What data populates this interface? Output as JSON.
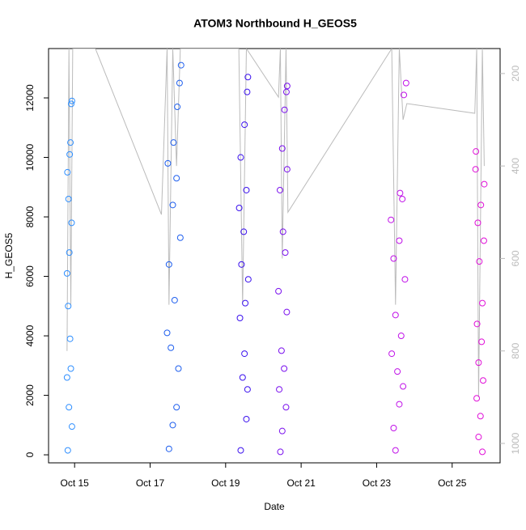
{
  "chart_data": {
    "type": "scatter",
    "title": "ATOM3 Northbound H_GEOS5",
    "x_label": "Date",
    "y_label": "H_GEOS5",
    "xlim": [
      14.31,
      26.27
    ],
    "xticks": [
      {
        "value": 15,
        "label": "Oct 15"
      },
      {
        "value": 17,
        "label": "Oct 17"
      },
      {
        "value": 19,
        "label": "Oct 19"
      },
      {
        "value": 21,
        "label": "Oct 21"
      },
      {
        "value": 23,
        "label": "Oct 23"
      },
      {
        "value": 25,
        "label": "Oct 25"
      }
    ],
    "ylim": [
      -270,
      13660
    ],
    "yticks": [
      0,
      2000,
      4000,
      6000,
      8000,
      10000,
      12000
    ],
    "y2lim": [
      1042,
      146
    ],
    "y2ticks": [
      200,
      400,
      600,
      800,
      1000
    ],
    "y2_color": "#bbbbbb",
    "series": [
      {
        "color": "#2f8fff",
        "x": [
          14.82,
          14.93,
          14.85,
          14.8,
          14.9,
          14.88,
          14.83,
          14.8,
          14.86,
          14.92,
          14.84,
          14.81,
          14.87,
          14.89,
          14.91,
          14.93
        ],
        "values": [
          150,
          950,
          1600,
          2600,
          2900,
          3900,
          5000,
          6100,
          6800,
          7800,
          8600,
          9500,
          10100,
          10500,
          11800,
          11900
        ]
      },
      {
        "color": "#1f5fee",
        "x": [
          17.5,
          17.6,
          17.7,
          17.75,
          17.55,
          17.45,
          17.65,
          17.5,
          17.8,
          17.6,
          17.7,
          17.47,
          17.62,
          17.72,
          17.78,
          17.82
        ],
        "values": [
          200,
          1000,
          1600,
          2900,
          3600,
          4100,
          5200,
          6400,
          7300,
          8400,
          9300,
          9800,
          10500,
          11700,
          12500,
          13100
        ]
      },
      {
        "color": "#3a10ee",
        "x": [
          19.4,
          19.55,
          19.58,
          19.45,
          19.5,
          19.38,
          19.52,
          19.6,
          19.42,
          19.48,
          19.36,
          19.55,
          19.4,
          19.5,
          19.57,
          19.59
        ],
        "values": [
          150,
          1200,
          2200,
          2600,
          3400,
          4600,
          5100,
          5900,
          6400,
          7500,
          8300,
          8900,
          10000,
          11100,
          12200,
          12700
        ]
      },
      {
        "color": "#7a10ee",
        "x": [
          20.45,
          20.5,
          20.6,
          20.42,
          20.55,
          20.48,
          20.62,
          20.4,
          20.58,
          20.52,
          20.44,
          20.63,
          20.5,
          20.56,
          20.61,
          20.63
        ],
        "values": [
          100,
          800,
          1600,
          2200,
          2900,
          3500,
          4800,
          5500,
          6800,
          7500,
          8900,
          9600,
          10300,
          11600,
          12200,
          12400
        ]
      },
      {
        "color": "#c010e8",
        "x": [
          23.5,
          23.45,
          23.6,
          23.7,
          23.55,
          23.4,
          23.65,
          23.5,
          23.75,
          23.45,
          23.6,
          23.38,
          23.68,
          23.62,
          23.72,
          23.78
        ],
        "values": [
          150,
          900,
          1700,
          2300,
          2800,
          3400,
          4000,
          4700,
          5900,
          6600,
          7200,
          7900,
          8600,
          8800,
          12100,
          12500
        ]
      },
      {
        "color": "#e010d8",
        "x": [
          25.8,
          25.7,
          25.75,
          25.65,
          25.82,
          25.7,
          25.78,
          25.66,
          25.8,
          25.72,
          25.84,
          25.68,
          25.76,
          25.85,
          25.62,
          25.63
        ],
        "values": [
          100,
          600,
          1300,
          1900,
          2500,
          3100,
          3800,
          4400,
          5100,
          6500,
          7200,
          7800,
          8400,
          9100,
          9600,
          10200
        ]
      },
      {
        "type": "line",
        "axis": "y2",
        "color": "#bbbbbb",
        "x": [
          14.8,
          14.85,
          14.9,
          14.95,
          15.55,
          17.3,
          17.45,
          17.5,
          17.6,
          17.7,
          17.8,
          19.35,
          19.45,
          19.55,
          20.4,
          20.45,
          20.5,
          20.6,
          20.65,
          23.4,
          23.5,
          23.6,
          23.7,
          23.8,
          25.6,
          25.65,
          25.7,
          25.8,
          25.85
        ],
        "values": [
          800,
          146,
          700,
          146,
          146,
          505,
          146,
          700,
          146,
          400,
          146,
          146,
          700,
          146,
          251,
          146,
          600,
          146,
          500,
          146,
          700,
          146,
          300,
          265,
          286,
          146,
          900,
          146,
          400
        ]
      }
    ]
  }
}
